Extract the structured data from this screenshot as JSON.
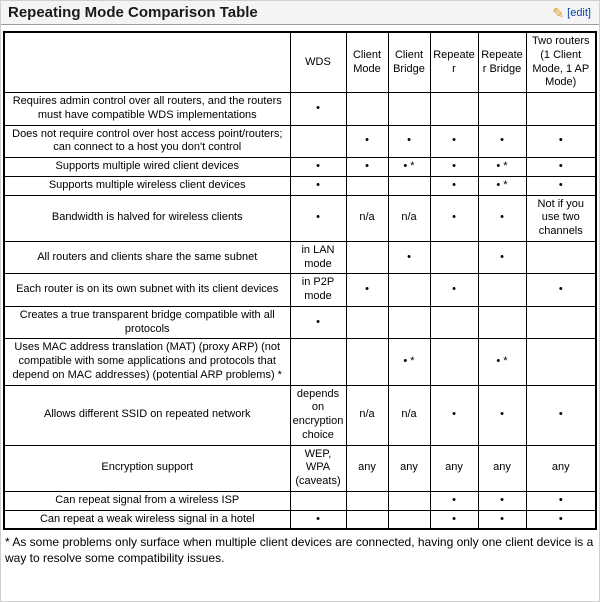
{
  "page": {
    "title": "Repeating Mode Comparison Table",
    "edit_icon_glyph": "✎",
    "edit_link": "[edit]",
    "footnote": "* As some problems only surface when multiple client devices are connected, having only one client device is a way to resolve some compatibility issues."
  },
  "colors": {
    "edit_link": "#0645ad",
    "pencil_icon": "#d89e2a",
    "table_border": "#000000",
    "header_bar_bg": "#f4f4f4"
  },
  "table": {
    "columns": [
      "",
      "WDS",
      "Client Mode",
      "Client Bridge",
      "Repeater",
      "Repeater Bridge",
      "Two routers (1 Client Mode, 1 AP Mode)"
    ],
    "rows": [
      {
        "feature": "Requires admin control over all routers, and the routers must have compatible WDS implementations",
        "cells": [
          "•",
          "",
          "",
          "",
          "",
          ""
        ]
      },
      {
        "feature": "Does not require control over host access point/routers; can connect to a host you don't control",
        "cells": [
          "",
          "•",
          "•",
          "•",
          "•",
          "•"
        ]
      },
      {
        "feature": "Supports multiple wired client devices",
        "cells": [
          "•",
          "•",
          "• *",
          "•",
          "• *",
          "•"
        ]
      },
      {
        "feature": "Supports multiple wireless client devices",
        "cells": [
          "•",
          "",
          "",
          "•",
          "• *",
          "•"
        ]
      },
      {
        "feature": "Bandwidth is halved for wireless clients",
        "cells": [
          "•",
          "n/a",
          "n/a",
          "•",
          "•",
          "Not if you use two channels"
        ]
      },
      {
        "feature": "All routers and clients share the same subnet",
        "cells": [
          "in LAN mode",
          "",
          "•",
          "",
          "•",
          ""
        ]
      },
      {
        "feature": "Each router is on its own subnet with its client devices",
        "cells": [
          "in P2P mode",
          "•",
          "",
          "•",
          "",
          "•"
        ]
      },
      {
        "feature": "Creates a true transparent bridge compatible with all protocols",
        "cells": [
          "•",
          "",
          "",
          "",
          "",
          ""
        ]
      },
      {
        "feature": "Uses MAC address translation (MAT) (proxy ARP) (not compatible with some applications and protocols that depend on MAC addresses) (potential ARP problems) *",
        "cells": [
          "",
          "",
          "• *",
          "",
          "• *",
          ""
        ]
      },
      {
        "feature": "Allows different SSID on repeated network",
        "cells": [
          "depends on encryption choice",
          "n/a",
          "n/a",
          "•",
          "•",
          "•"
        ]
      },
      {
        "feature": "Encryption support",
        "cells": [
          "WEP, WPA (caveats)",
          "any",
          "any",
          "any",
          "any",
          "any"
        ]
      },
      {
        "feature": "Can repeat signal from a wireless ISP",
        "cells": [
          "",
          "",
          "",
          "•",
          "•",
          "•"
        ]
      },
      {
        "feature": "Can repeat a weak wireless signal in a hotel",
        "cells": [
          "•",
          "",
          "",
          "•",
          "•",
          "•"
        ]
      }
    ]
  }
}
